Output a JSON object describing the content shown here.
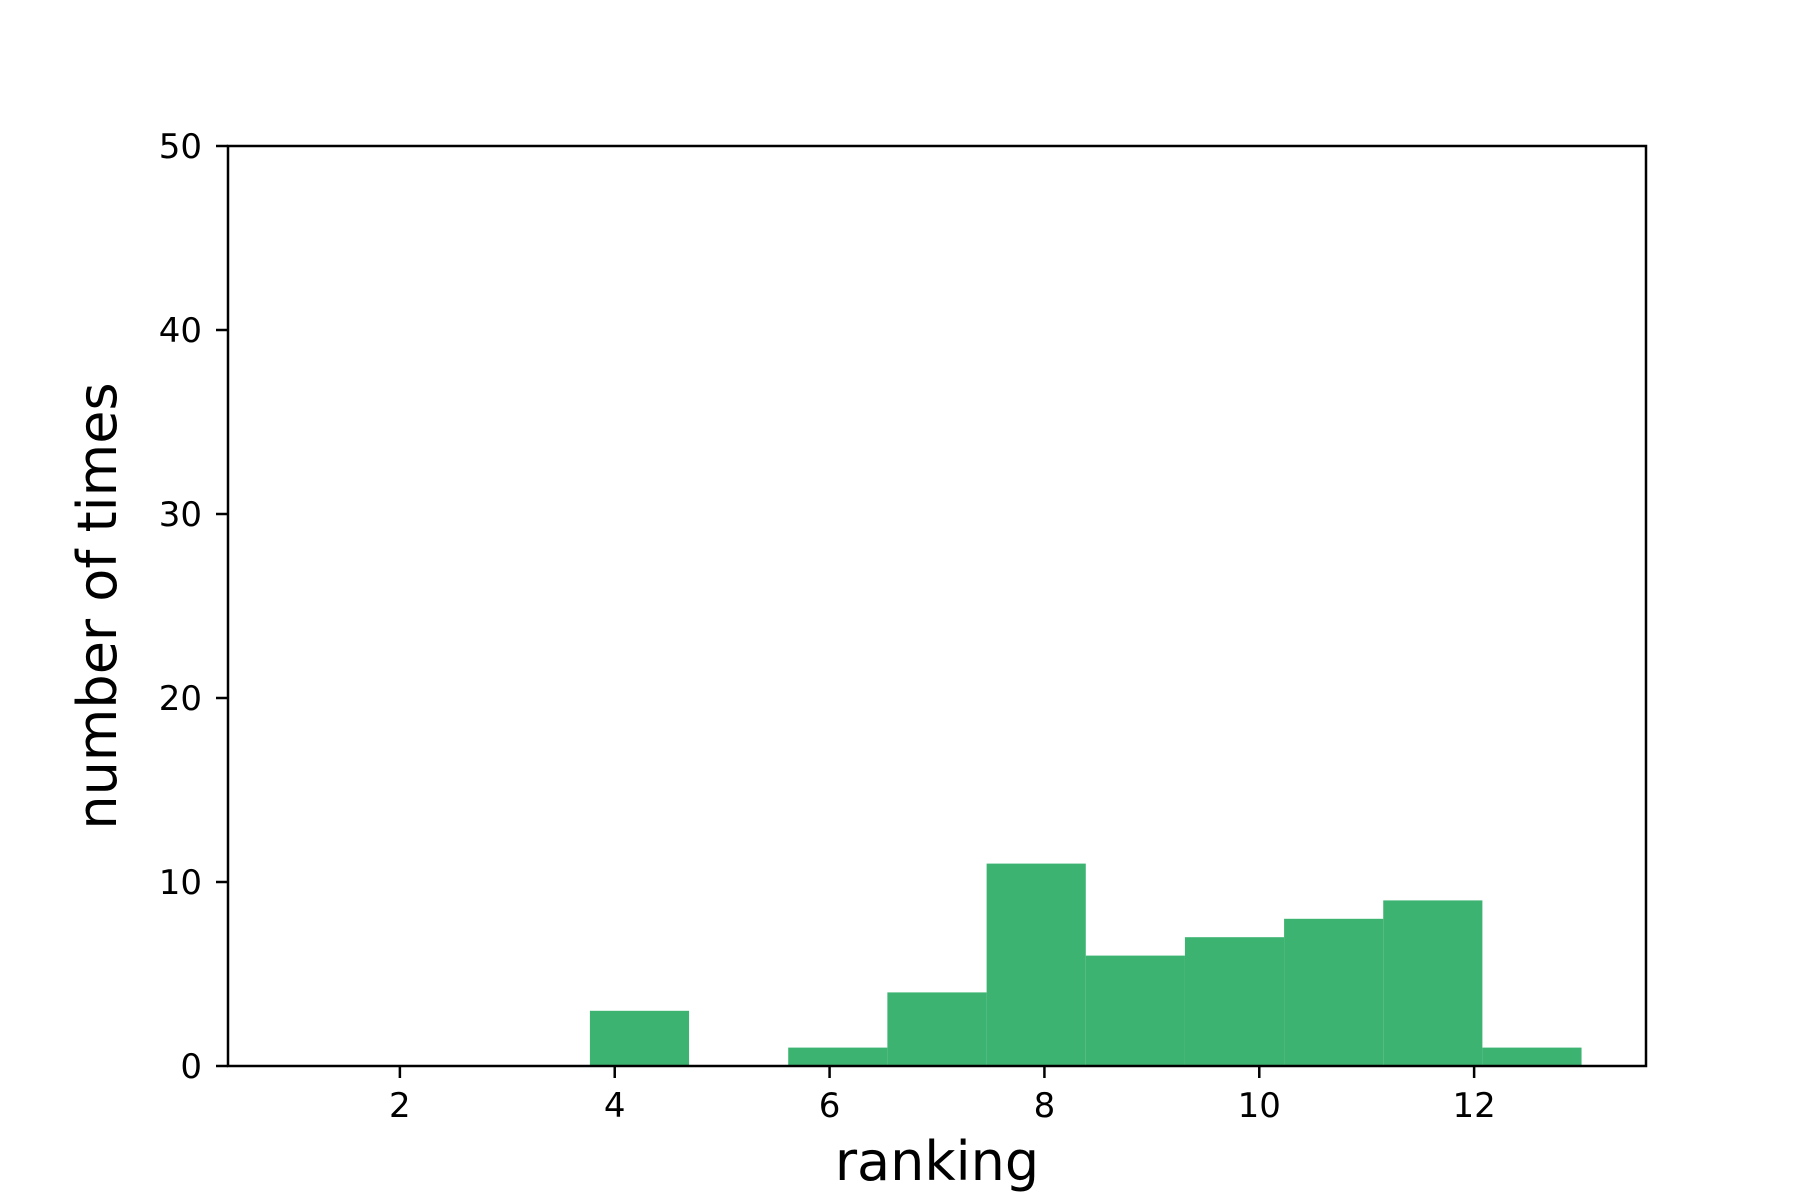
{
  "chart_data": {
    "type": "bar",
    "subtype": "histogram",
    "xlabel": "ranking",
    "ylabel": "number of times",
    "xlim": [
      0.4,
      13.6
    ],
    "ylim": [
      0,
      50
    ],
    "xticks": [
      2,
      4,
      6,
      8,
      10,
      12
    ],
    "yticks": [
      0,
      10,
      20,
      30,
      40,
      50
    ],
    "bar_color": "#3cb371",
    "grid": false,
    "bins": [
      {
        "x0": 1.0,
        "x1": 1.923,
        "count": 0
      },
      {
        "x0": 1.923,
        "x1": 2.846,
        "count": 0
      },
      {
        "x0": 2.846,
        "x1": 3.769,
        "count": 0
      },
      {
        "x0": 3.769,
        "x1": 4.692,
        "count": 3
      },
      {
        "x0": 4.692,
        "x1": 5.615,
        "count": 0
      },
      {
        "x0": 5.615,
        "x1": 6.538,
        "count": 1
      },
      {
        "x0": 6.538,
        "x1": 7.462,
        "count": 4
      },
      {
        "x0": 7.462,
        "x1": 8.385,
        "count": 11
      },
      {
        "x0": 8.385,
        "x1": 9.308,
        "count": 6
      },
      {
        "x0": 9.308,
        "x1": 10.231,
        "count": 7
      },
      {
        "x0": 10.231,
        "x1": 11.154,
        "count": 8
      },
      {
        "x0": 11.154,
        "x1": 12.077,
        "count": 9
      },
      {
        "x0": 12.077,
        "x1": 13.0,
        "count": 1
      }
    ]
  }
}
